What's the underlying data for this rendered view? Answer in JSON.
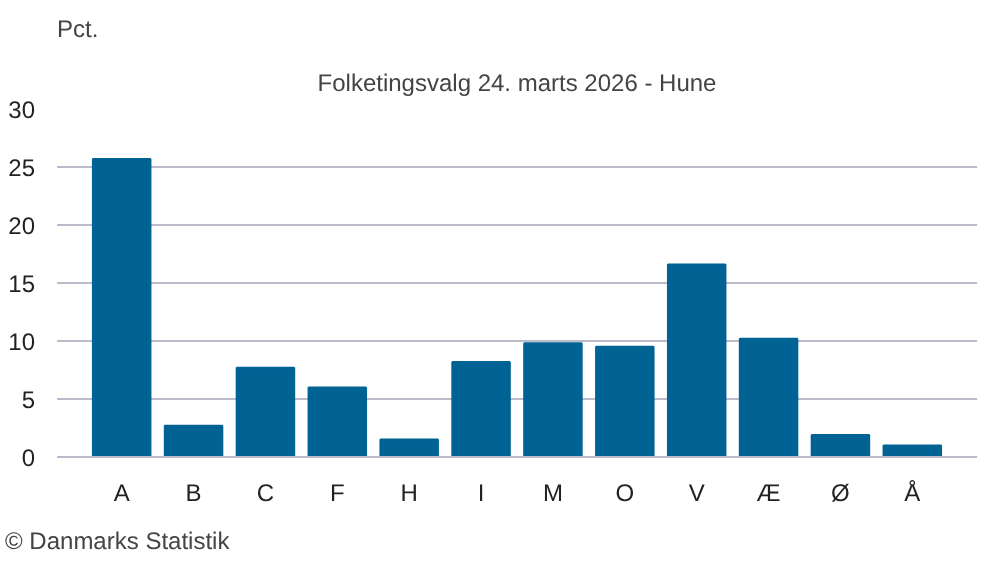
{
  "chart_data": {
    "type": "bar",
    "title": "Folketingsvalg 24. marts 2026 - Hune",
    "ylabel": "Pct.",
    "categories": [
      "A",
      "B",
      "C",
      "F",
      "H",
      "I",
      "M",
      "O",
      "V",
      "Æ",
      "Ø",
      "Å"
    ],
    "values": [
      25.7,
      2.7,
      7.7,
      6.0,
      1.5,
      8.2,
      9.8,
      9.5,
      16.6,
      10.2,
      1.9,
      1.0
    ],
    "color": "#006394",
    "ylim": [
      0,
      30
    ],
    "yticks": [
      0,
      5,
      10,
      15,
      20,
      25,
      30
    ],
    "grid": "y",
    "annotations": [
      "© Danmarks Statistik"
    ]
  }
}
